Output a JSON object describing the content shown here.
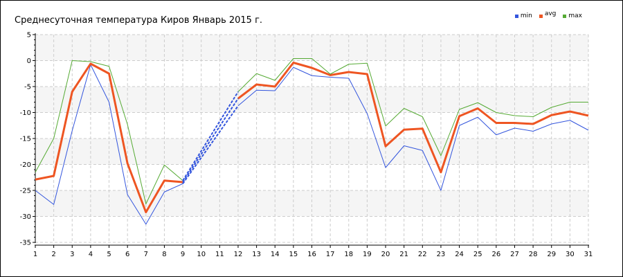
{
  "chart_data": {
    "type": "line",
    "title": "Среднесуточная температура Киров  Январь 2015 г.",
    "x": [
      1,
      2,
      3,
      4,
      5,
      6,
      7,
      8,
      9,
      10,
      11,
      12,
      13,
      14,
      15,
      16,
      17,
      18,
      19,
      20,
      21,
      22,
      23,
      24,
      25,
      26,
      27,
      28,
      29,
      30,
      31
    ],
    "xticks": [
      "1",
      "2",
      "3",
      "4",
      "5",
      "6",
      "7",
      "8",
      "9",
      "10",
      "11",
      "12",
      "13",
      "14",
      "15",
      "16",
      "17",
      "18",
      "19",
      "20",
      "21",
      "22",
      "23",
      "24",
      "25",
      "26",
      "27",
      "28",
      "29",
      "30",
      "31"
    ],
    "yticks": [
      "5",
      "0",
      "-5",
      "-10",
      "-15",
      "-20",
      "-25",
      "-30",
      "-35"
    ],
    "ylim": [
      -35,
      5
    ],
    "xlim": [
      1,
      31
    ],
    "grid": true,
    "legend_position": "top-right",
    "missing_days": [
      10,
      11
    ],
    "series": [
      {
        "name": "min",
        "color": "#3355dd",
        "values": [
          -25.0,
          -27.7,
          -13.5,
          -0.8,
          -8.0,
          -25.8,
          -31.5,
          -25.3,
          -23.7,
          null,
          null,
          -8.7,
          -5.7,
          -5.8,
          -1.3,
          -2.9,
          -3.2,
          -3.4,
          -10.2,
          -20.6,
          -16.4,
          -17.3,
          -25.0,
          -12.5,
          -10.9,
          -14.3,
          -13.0,
          -13.6,
          -12.2,
          -11.5,
          -13.4
        ]
      },
      {
        "name": "avg",
        "color": "#ee5522",
        "values": [
          -22.9,
          -22.2,
          -6.0,
          -0.6,
          -2.5,
          -19.8,
          -29.2,
          -23.1,
          -23.4,
          null,
          null,
          -7.3,
          -4.6,
          -5.0,
          -0.4,
          -1.4,
          -2.8,
          -2.2,
          -2.6,
          -16.5,
          -13.3,
          -13.1,
          -21.5,
          -10.7,
          -9.2,
          -12.0,
          -12.0,
          -12.2,
          -10.5,
          -9.8,
          -10.6
        ]
      },
      {
        "name": "max",
        "color": "#55aa33",
        "values": [
          -21.5,
          -15.0,
          0.0,
          -0.2,
          -1.1,
          -12.3,
          -27.6,
          -20.1,
          -23.1,
          null,
          null,
          -6.0,
          -2.5,
          -3.8,
          0.4,
          0.4,
          -2.6,
          -0.7,
          -0.5,
          -12.6,
          -9.2,
          -10.8,
          -18.3,
          -9.4,
          -8.1,
          -10.0,
          -10.6,
          -10.8,
          -9.0,
          -8.0,
          -8.0
        ]
      }
    ],
    "interpolated_lines": [
      {
        "series": "min",
        "from": [
          9,
          -23.7
        ],
        "to": [
          12,
          -8.7
        ]
      },
      {
        "series": "avg",
        "from": [
          9,
          -23.4
        ],
        "to": [
          12,
          -7.3
        ]
      },
      {
        "series": "max",
        "from": [
          9,
          -23.1
        ],
        "to": [
          12,
          -6.0
        ]
      }
    ]
  }
}
